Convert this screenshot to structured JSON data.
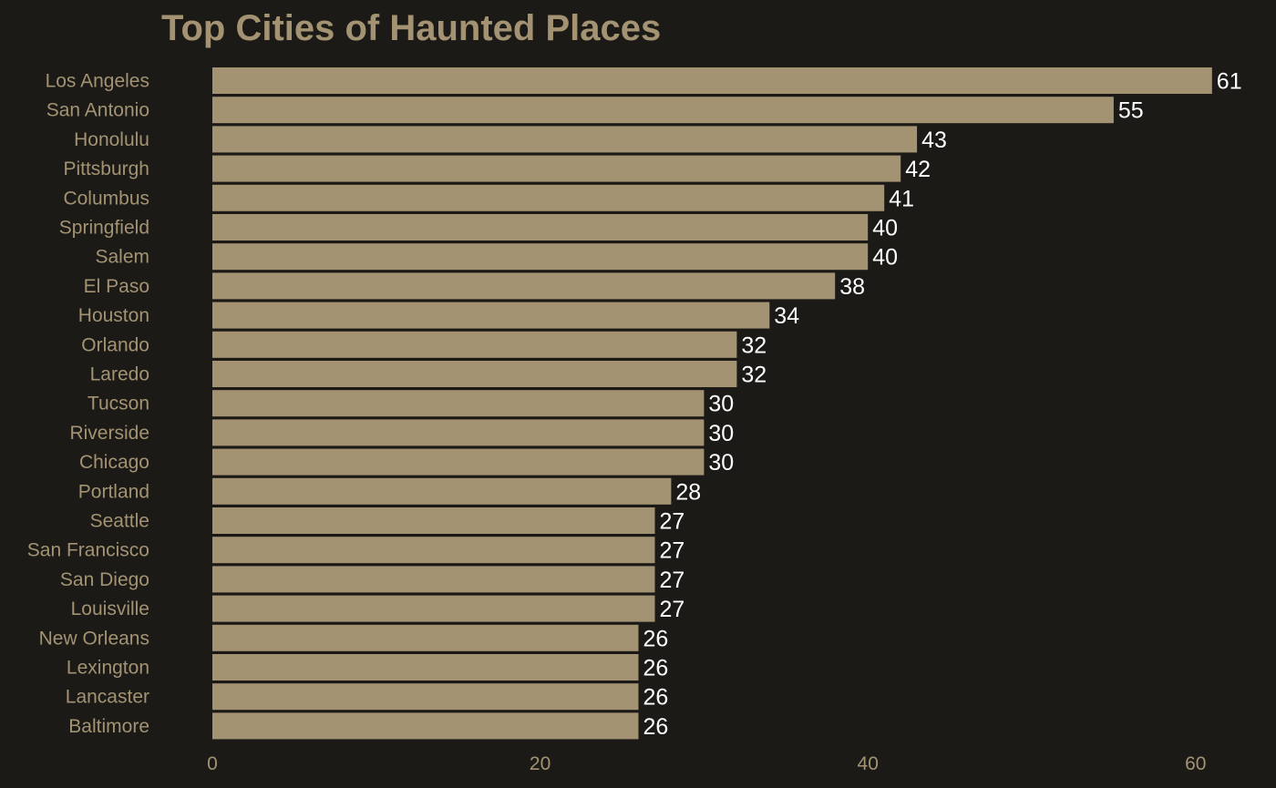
{
  "colors": {
    "background": "#1b1a17",
    "bar": "#a39372",
    "text": "#a39372",
    "value_label": "#ffffff"
  },
  "chart_data": {
    "type": "bar",
    "orientation": "horizontal",
    "title": "Top Cities of Haunted Places",
    "xlabel": "",
    "ylabel": "",
    "categories": [
      "Los Angeles",
      "San Antonio",
      "Honolulu",
      "Pittsburgh",
      "Columbus",
      "Springfield",
      "Salem",
      "El Paso",
      "Houston",
      "Orlando",
      "Laredo",
      "Tucson",
      "Riverside",
      "Chicago",
      "Portland",
      "Seattle",
      "San Francisco",
      "San Diego",
      "Louisville",
      "New Orleans",
      "Lexington",
      "Lancaster",
      "Baltimore"
    ],
    "values": [
      61,
      55,
      43,
      42,
      41,
      40,
      40,
      38,
      34,
      32,
      32,
      30,
      30,
      30,
      28,
      27,
      27,
      27,
      27,
      26,
      26,
      26,
      26
    ],
    "xlim": [
      0,
      61
    ],
    "xticks": [
      0,
      20,
      40,
      60
    ],
    "grid": false,
    "legend": "none",
    "data_labels": true
  }
}
